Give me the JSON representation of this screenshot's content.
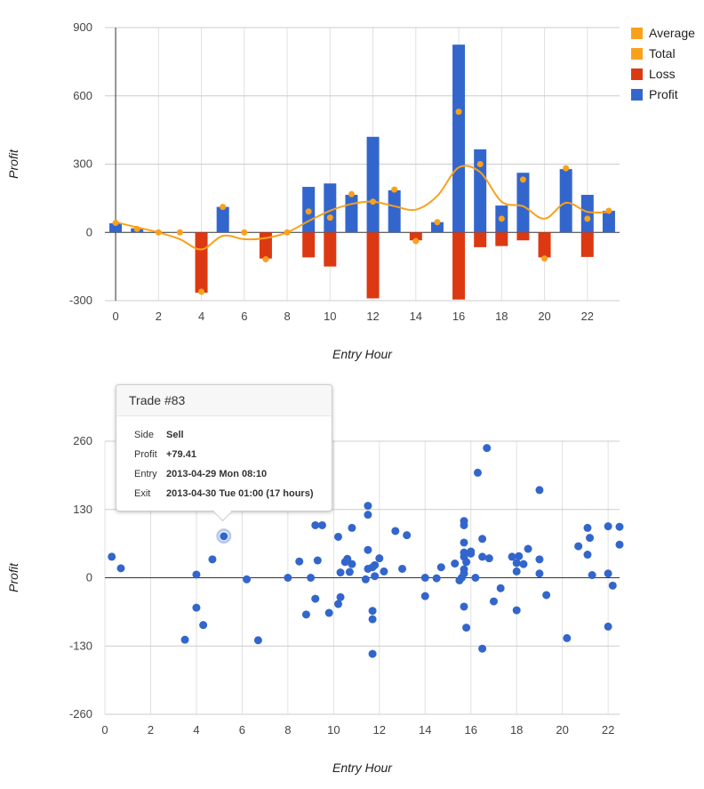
{
  "chart_data": [
    {
      "type": "bar",
      "xlabel": "Entry Hour",
      "ylabel": "Profit",
      "ylim": [
        -300,
        900
      ],
      "yticks": [
        -300,
        0,
        300,
        600,
        900
      ],
      "xlim": [
        -0.5,
        23.5
      ],
      "xticks": [
        0,
        2,
        4,
        6,
        8,
        10,
        12,
        14,
        16,
        18,
        20,
        22
      ],
      "grid": true,
      "legend_position": "right",
      "legend": [
        {
          "name": "Average",
          "color": "#f9a11b"
        },
        {
          "name": "Total",
          "color": "#f9a11b"
        },
        {
          "name": "Loss",
          "color": "#dc3912"
        },
        {
          "name": "Profit",
          "color": "#3366cc"
        }
      ],
      "x": [
        0,
        1,
        2,
        3,
        4,
        5,
        6,
        7,
        8,
        9,
        10,
        11,
        12,
        13,
        14,
        15,
        16,
        17,
        18,
        19,
        20,
        21,
        22,
        23
      ],
      "series": [
        {
          "name": "Profit",
          "type": "bar",
          "color": "#3366cc",
          "values": [
            40,
            18,
            0,
            0,
            0,
            112,
            0,
            0,
            0,
            200,
            215,
            165,
            420,
            185,
            0,
            45,
            825,
            365,
            118,
            262,
            0,
            278,
            165,
            95
          ]
        },
        {
          "name": "Loss",
          "type": "bar",
          "color": "#dc3912",
          "values": [
            0,
            0,
            0,
            0,
            -265,
            0,
            0,
            -115,
            0,
            -110,
            -150,
            0,
            -290,
            0,
            -35,
            0,
            -295,
            -65,
            -60,
            -35,
            -110,
            0,
            -108,
            0
          ]
        },
        {
          "name": "Total",
          "type": "points",
          "color": "#f9a11b",
          "values": [
            42,
            15,
            0,
            0,
            -262,
            112,
            0,
            -118,
            0,
            92,
            65,
            168,
            135,
            188,
            -38,
            45,
            530,
            300,
            60,
            232,
            -115,
            282,
            60,
            95
          ]
        },
        {
          "name": "Average",
          "type": "smooth-line",
          "color": "#f9a11b",
          "values": [
            45,
            22,
            0,
            -30,
            -75,
            -15,
            -30,
            -25,
            0,
            50,
            95,
            125,
            135,
            115,
            100,
            160,
            285,
            265,
            135,
            115,
            60,
            130,
            90,
            90
          ]
        }
      ]
    },
    {
      "type": "scatter",
      "xlabel": "Entry Hour",
      "ylabel": "Profit",
      "ylim": [
        -260,
        260
      ],
      "yticks": [
        -260,
        -130,
        0,
        130,
        260
      ],
      "xlim": [
        0,
        22.5
      ],
      "xticks": [
        0,
        2,
        4,
        6,
        8,
        10,
        12,
        14,
        16,
        18,
        20,
        22
      ],
      "grid": true,
      "color": "#3366cc",
      "highlighted_point": {
        "x": 5.2,
        "y": 79.41
      },
      "points": [
        [
          0.3,
          40
        ],
        [
          0.7,
          18
        ],
        [
          3.5,
          -118
        ],
        [
          4.0,
          6
        ],
        [
          4.0,
          -57
        ],
        [
          4.3,
          -90
        ],
        [
          4.7,
          35
        ],
        [
          5.2,
          79
        ],
        [
          6.2,
          -3
        ],
        [
          6.7,
          -119
        ],
        [
          8.0,
          0
        ],
        [
          8.5,
          31
        ],
        [
          8.8,
          -70
        ],
        [
          9.0,
          0
        ],
        [
          9.2,
          100
        ],
        [
          9.3,
          33
        ],
        [
          9.2,
          -40
        ],
        [
          9.5,
          100
        ],
        [
          9.8,
          -67
        ],
        [
          10.2,
          -50
        ],
        [
          10.2,
          78
        ],
        [
          10.3,
          10
        ],
        [
          10.3,
          -37
        ],
        [
          10.5,
          30
        ],
        [
          10.6,
          36
        ],
        [
          10.7,
          11
        ],
        [
          10.8,
          26
        ],
        [
          10.8,
          95
        ],
        [
          11.4,
          -3
        ],
        [
          11.5,
          17
        ],
        [
          11.5,
          137
        ],
        [
          11.5,
          120
        ],
        [
          11.5,
          53
        ],
        [
          11.7,
          20
        ],
        [
          11.7,
          -63
        ],
        [
          11.7,
          -79
        ],
        [
          11.7,
          -145
        ],
        [
          11.8,
          24
        ],
        [
          11.8,
          3
        ],
        [
          12.0,
          37
        ],
        [
          12.2,
          12
        ],
        [
          12.7,
          89
        ],
        [
          13.0,
          17
        ],
        [
          13.2,
          81
        ],
        [
          14.0,
          0
        ],
        [
          14.0,
          -35
        ],
        [
          14.5,
          -1
        ],
        [
          14.7,
          20
        ],
        [
          15.3,
          27
        ],
        [
          15.5,
          -5
        ],
        [
          15.6,
          0
        ],
        [
          15.7,
          108
        ],
        [
          15.7,
          100
        ],
        [
          15.7,
          67
        ],
        [
          15.7,
          48
        ],
        [
          15.7,
          40
        ],
        [
          15.7,
          -55
        ],
        [
          15.7,
          16
        ],
        [
          15.7,
          8
        ],
        [
          15.8,
          -95
        ],
        [
          15.8,
          30
        ],
        [
          16.0,
          50
        ],
        [
          16.0,
          46
        ],
        [
          16.2,
          0
        ],
        [
          16.3,
          200
        ],
        [
          16.5,
          74
        ],
        [
          16.5,
          -135
        ],
        [
          16.5,
          40
        ],
        [
          16.7,
          247
        ],
        [
          16.8,
          37
        ],
        [
          17.0,
          -45
        ],
        [
          17.3,
          -20
        ],
        [
          17.8,
          40
        ],
        [
          18.0,
          -62
        ],
        [
          18.0,
          28
        ],
        [
          18.0,
          12
        ],
        [
          18.1,
          41
        ],
        [
          18.3,
          26
        ],
        [
          18.5,
          55
        ],
        [
          19.0,
          35
        ],
        [
          19.0,
          167
        ],
        [
          19.0,
          8
        ],
        [
          19.3,
          -33
        ],
        [
          20.2,
          -115
        ],
        [
          20.7,
          60
        ],
        [
          21.1,
          95
        ],
        [
          21.1,
          44
        ],
        [
          21.2,
          76
        ],
        [
          21.3,
          5
        ],
        [
          22.0,
          8
        ],
        [
          22.0,
          98
        ],
        [
          22.0,
          -93
        ],
        [
          22.2,
          -15
        ],
        [
          22.5,
          97
        ],
        [
          22.5,
          63
        ]
      ]
    }
  ],
  "tooltip": {
    "title": "Trade #83",
    "rows": [
      {
        "key": "Side",
        "value": "Sell"
      },
      {
        "key": "Profit",
        "value": "+79.41"
      },
      {
        "key": "Entry",
        "value": "2013-04-29 Mon 08:10"
      },
      {
        "key": "Exit",
        "value": "2013-04-30 Tue 01:00 (17 hours)"
      }
    ]
  }
}
